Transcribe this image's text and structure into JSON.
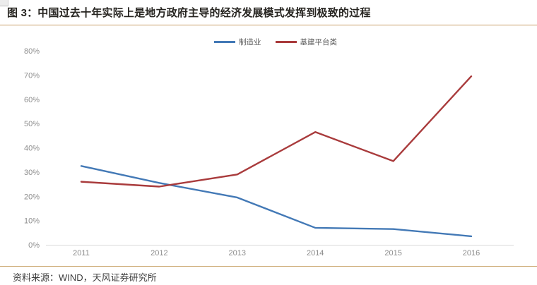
{
  "page": {
    "title": "图 3：中国过去十年实际上是地方政府主导的经济发展模式发挥到极致的过程",
    "source_note": "资料来源：WIND，天风证券研究所"
  },
  "colors": {
    "title_text": "#262420",
    "rule_line": "#c79e66",
    "axis_text": "#8c8c8c",
    "axis_line": "#d9d9d9",
    "series_manufacturing": "#4379b6",
    "series_infrastructure": "#a93b3c"
  },
  "chart_data": {
    "type": "line",
    "x": [
      "2011",
      "2012",
      "2013",
      "2014",
      "2015",
      "2016"
    ],
    "series": [
      {
        "key": "manufacturing",
        "name": "制造业",
        "color_key": "series_manufacturing",
        "values": [
          32.5,
          25.5,
          19.5,
          7,
          6.5,
          3.5
        ]
      },
      {
        "key": "infrastructure",
        "name": "基建平台类",
        "color_key": "series_infrastructure",
        "values": [
          26,
          24,
          29,
          46.5,
          34.5,
          69.5
        ]
      }
    ],
    "title": "",
    "xlabel": "",
    "ylabel": "",
    "yticks": [
      0,
      10,
      20,
      30,
      40,
      50,
      60,
      70,
      80
    ],
    "ytick_suffix": "%",
    "ylim": [
      0,
      80
    ],
    "grid": false,
    "legend_position": "top-center"
  }
}
